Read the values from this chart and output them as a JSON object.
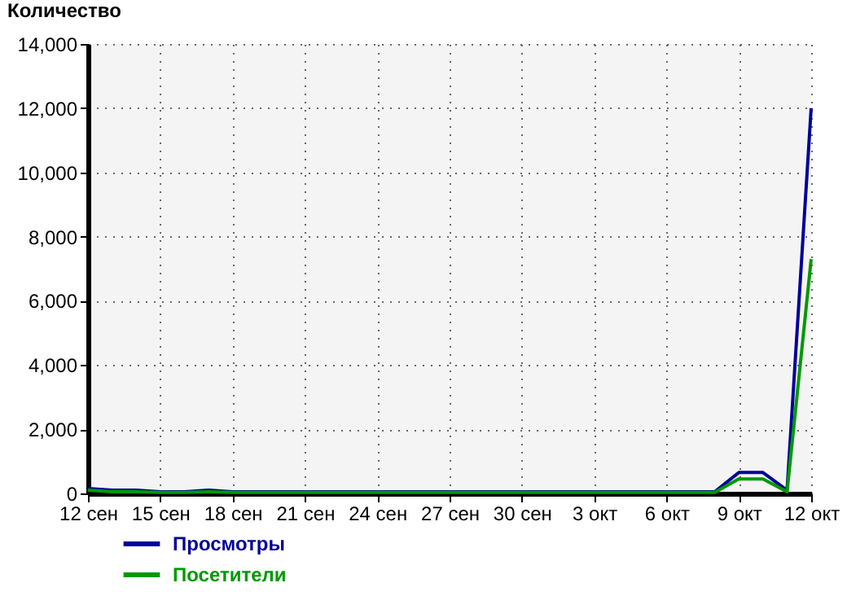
{
  "chart_data": {
    "type": "line",
    "ylabel": "Количество",
    "x": [
      "--09-12",
      "--09-13",
      "--09-14",
      "--09-15",
      "--09-16",
      "--09-17",
      "--09-18",
      "--09-19",
      "--09-20",
      "--09-21",
      "--09-22",
      "--09-23",
      "--09-24",
      "--09-25",
      "--09-26",
      "--09-27",
      "--09-28",
      "--09-29",
      "--09-30",
      "--10-01",
      "--10-02",
      "--10-03",
      "--10-04",
      "--10-05",
      "--10-06",
      "--10-07",
      "--10-08",
      "--10-09",
      "--10-10",
      "--10-11",
      "--10-12"
    ],
    "series": [
      {
        "name": "Просмотры",
        "color": "#000099",
        "values": [
          150,
          100,
          100,
          50,
          50,
          100,
          50,
          50,
          50,
          50,
          50,
          50,
          50,
          50,
          50,
          50,
          50,
          50,
          50,
          50,
          50,
          50,
          50,
          50,
          50,
          50,
          50,
          650,
          650,
          100,
          12000
        ]
      },
      {
        "name": "Посетители",
        "color": "#009900",
        "values": [
          100,
          50,
          50,
          30,
          30,
          50,
          30,
          30,
          30,
          30,
          30,
          30,
          30,
          30,
          30,
          30,
          30,
          30,
          30,
          30,
          30,
          30,
          30,
          30,
          30,
          30,
          30,
          450,
          450,
          50,
          7300
        ]
      }
    ],
    "xlim": [
      "--09-12",
      "--10-12"
    ],
    "xticks": [
      {
        "value": "--09-12",
        "label": "12 сен"
      },
      {
        "value": "--09-15",
        "label": "15 сен"
      },
      {
        "value": "--09-18",
        "label": "18 сен"
      },
      {
        "value": "--09-21",
        "label": "21 сен"
      },
      {
        "value": "--09-24",
        "label": "24 сен"
      },
      {
        "value": "--09-27",
        "label": "27 сен"
      },
      {
        "value": "--09-30",
        "label": "30 сен"
      },
      {
        "value": "--10-03",
        "label": "3 окт"
      },
      {
        "value": "--10-06",
        "label": "6 окт"
      },
      {
        "value": "--10-09",
        "label": "9 окт"
      },
      {
        "value": "--10-12",
        "label": "12 окт"
      }
    ],
    "ylim": [
      0,
      14000
    ],
    "yticks": [
      {
        "value": 0,
        "label": "0"
      },
      {
        "value": 2000,
        "label": "2,000"
      },
      {
        "value": 4000,
        "label": "4,000"
      },
      {
        "value": 6000,
        "label": "6,000"
      },
      {
        "value": 8000,
        "label": "8,000"
      },
      {
        "value": 10000,
        "label": "10,000"
      },
      {
        "value": 12000,
        "label": "12,000"
      },
      {
        "value": 14000,
        "label": "14,000"
      }
    ],
    "grid": true,
    "legend": "bottom left",
    "marker": "none",
    "line_style": "solid"
  }
}
